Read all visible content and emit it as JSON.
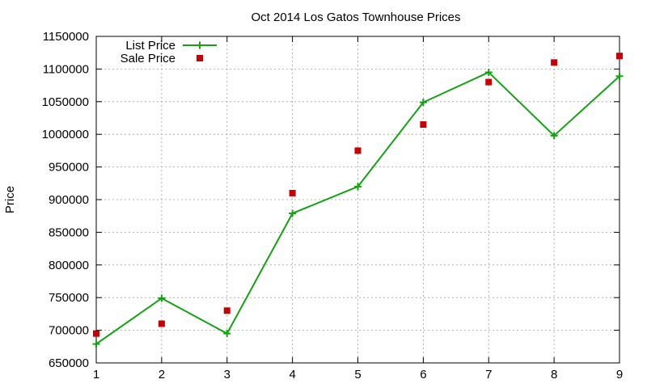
{
  "chart_data": {
    "type": "line",
    "title": "Oct 2014 Los Gatos Townhouse Prices",
    "xlabel": "",
    "ylabel": "Price",
    "x": [
      1,
      2,
      3,
      4,
      5,
      6,
      7,
      8,
      9
    ],
    "xlim": [
      1,
      9
    ],
    "ylim": [
      650000,
      1150000
    ],
    "xticks": [
      1,
      2,
      3,
      4,
      5,
      6,
      7,
      8,
      9
    ],
    "yticks": [
      650000,
      700000,
      750000,
      800000,
      850000,
      900000,
      950000,
      1000000,
      1050000,
      1100000,
      1150000
    ],
    "grid": true,
    "legend_position": "top-left",
    "series": [
      {
        "name": "List Price",
        "style": "line-points",
        "marker": "plus",
        "color": "#13a313",
        "values": [
          679000,
          749000,
          695000,
          879000,
          920000,
          1049000,
          1095000,
          998000,
          1089000
        ]
      },
      {
        "name": "Sale Price",
        "style": "points",
        "marker": "square",
        "color": "#c80000",
        "values": [
          695000,
          710000,
          730000,
          910000,
          975000,
          1015000,
          1080000,
          1110000,
          1120000
        ]
      }
    ]
  }
}
